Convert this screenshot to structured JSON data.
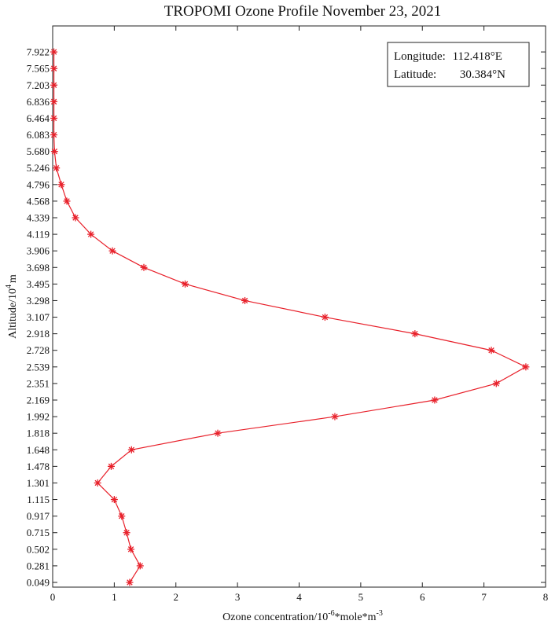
{
  "chart_data": {
    "type": "line",
    "title": "TROPOMI Ozone Profile November 23, 2021",
    "xlabel": "Ozone concentration/10",
    "xlabel_exp1": "-6",
    "xlabel_mid": "*mole*m",
    "xlabel_exp2": "-3",
    "ylabel": "Altitude/10",
    "ylabel_exp": "4",
    "ylabel_unit": "m",
    "xlim": [
      0,
      8
    ],
    "xticks": [
      0,
      1,
      2,
      3,
      4,
      5,
      6,
      7,
      8
    ],
    "ylim": [
      0,
      33
    ],
    "yticks": [
      "0.049",
      "0.281",
      "0.502",
      "0.715",
      "0.917",
      "1.115",
      "1.301",
      "1.478",
      "1.648",
      "1.818",
      "1.992",
      "2.169",
      "2.351",
      "2.539",
      "2.728",
      "2.918",
      "3.107",
      "3.298",
      "3.495",
      "3.698",
      "3.906",
      "4.119",
      "4.339",
      "4.568",
      "4.796",
      "5.246",
      "5.680",
      "6.083",
      "6.464",
      "6.836",
      "7.203",
      "7.565",
      "7.922"
    ],
    "legend": {
      "position": "top-right",
      "lines": [
        {
          "label": "Longitude:",
          "value": "112.418°E"
        },
        {
          "label": "Latitude:",
          "value": "30.384°N"
        }
      ]
    },
    "color": "#e8202a",
    "marker": "asterisk",
    "series": [
      {
        "altitude": [
          "0.049",
          "0.281",
          "0.502",
          "0.715",
          "0.917",
          "1.115",
          "1.301",
          "1.478",
          "1.648",
          "1.818",
          "1.992",
          "2.169",
          "2.351",
          "2.539",
          "2.728",
          "2.918",
          "3.107",
          "3.298",
          "3.495",
          "3.698",
          "3.906",
          "4.119",
          "4.339",
          "4.568",
          "4.796",
          "5.246",
          "5.680",
          "6.083",
          "6.464",
          "6.836",
          "7.203",
          "7.565",
          "7.922"
        ],
        "ozone": [
          1.25,
          1.42,
          1.27,
          1.2,
          1.12,
          1.0,
          0.73,
          0.95,
          1.28,
          2.68,
          4.58,
          6.2,
          7.2,
          7.68,
          7.12,
          5.88,
          4.42,
          3.12,
          2.15,
          1.48,
          0.97,
          0.62,
          0.37,
          0.23,
          0.14,
          0.06,
          0.03,
          0.02,
          0.02,
          0.02,
          0.02,
          0.02,
          0.02
        ]
      }
    ]
  }
}
